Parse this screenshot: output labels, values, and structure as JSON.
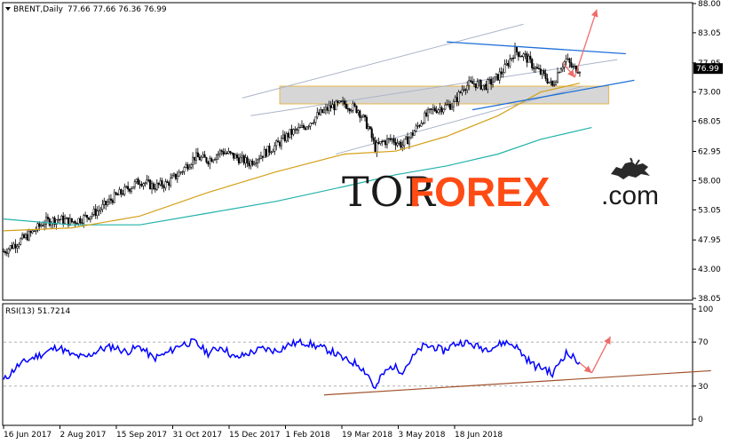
{
  "chart_data": [
    {
      "type": "candlestick",
      "instrument_label": "BRENT,Daily",
      "ohlc_label": "77.66 77.66 76.36 76.99",
      "last_price": "76.99",
      "ylim": [
        38.05,
        88.0
      ],
      "y_ticks": [
        "88.00",
        "83.05",
        "77.95",
        "73.00",
        "68.05",
        "62.95",
        "58.00",
        "53.05",
        "47.95",
        "43.00",
        "38.05"
      ],
      "x_ticks": [
        "16 Jun 2017",
        "2 Aug 2017",
        "15 Sep 2017",
        "31 Oct 2017",
        "15 Dec 2017",
        "1 Feb 2018",
        "19 Mar 2018",
        "3 May 2018",
        "18 Jun 2018"
      ],
      "close_path": [
        [
          0,
          46.0
        ],
        [
          8,
          47.5
        ],
        [
          16,
          49.0
        ],
        [
          24,
          51.0
        ],
        [
          32,
          51.5
        ],
        [
          40,
          51.0
        ],
        [
          48,
          51.8
        ],
        [
          56,
          53.0
        ],
        [
          64,
          55.0
        ],
        [
          72,
          56.5
        ],
        [
          80,
          58.0
        ],
        [
          88,
          57.0
        ],
        [
          96,
          57.5
        ],
        [
          104,
          59.5
        ],
        [
          112,
          62.0
        ],
        [
          120,
          61.5
        ],
        [
          128,
          63.0
        ],
        [
          136,
          62.0
        ],
        [
          144,
          61.0
        ],
        [
          152,
          62.5
        ],
        [
          160,
          64.0
        ],
        [
          168,
          66.0
        ],
        [
          176,
          67.0
        ],
        [
          184,
          69.0
        ],
        [
          192,
          70.5
        ],
        [
          200,
          71.0
        ],
        [
          208,
          70.0
        ],
        [
          214,
          67.0
        ],
        [
          218,
          63.5
        ],
        [
          222,
          64.5
        ],
        [
          228,
          65.0
        ],
        [
          234,
          64.0
        ],
        [
          240,
          66.0
        ],
        [
          246,
          68.5
        ],
        [
          252,
          70.0
        ],
        [
          258,
          70.5
        ],
        [
          264,
          71.0
        ],
        [
          270,
          74.0
        ],
        [
          276,
          74.5
        ],
        [
          282,
          74.0
        ],
        [
          288,
          75.0
        ],
        [
          294,
          77.0
        ],
        [
          300,
          80.0
        ],
        [
          306,
          79.0
        ],
        [
          312,
          77.0
        ],
        [
          318,
          75.5
        ],
        [
          322,
          74.0
        ],
        [
          326,
          77.0
        ],
        [
          330,
          78.5
        ],
        [
          334,
          77.0
        ],
        [
          338,
          76.99
        ]
      ],
      "sma_fast": [
        [
          0,
          49.5
        ],
        [
          40,
          50.0
        ],
        [
          80,
          52.0
        ],
        [
          120,
          56.0
        ],
        [
          160,
          59.5
        ],
        [
          200,
          62.5
        ],
        [
          230,
          63.0
        ],
        [
          260,
          65.5
        ],
        [
          290,
          69.0
        ],
        [
          315,
          73.0
        ],
        [
          338,
          74.5
        ]
      ],
      "sma_slow": [
        [
          0,
          51.5
        ],
        [
          40,
          50.5
        ],
        [
          80,
          50.5
        ],
        [
          120,
          52.5
        ],
        [
          160,
          54.5
        ],
        [
          200,
          57.0
        ],
        [
          230,
          59.0
        ],
        [
          260,
          60.5
        ],
        [
          290,
          62.5
        ],
        [
          315,
          65.0
        ],
        [
          345,
          67.0
        ]
      ],
      "resistance_zone": {
        "x": [
          162,
          355
        ],
        "y": [
          71.0,
          74.0
        ]
      },
      "channel_upper": [
        [
          140,
          72.0
        ],
        [
          305,
          84.5
        ]
      ],
      "channel_mid": [
        [
          145,
          69.0
        ],
        [
          360,
          78.5
        ]
      ],
      "channel_lower": [
        [
          195,
          62.5
        ],
        [
          340,
          74.0
        ]
      ],
      "descending_line": [
        [
          260,
          81.5
        ],
        [
          365,
          79.5
        ]
      ],
      "support_line": [
        [
          275,
          70.0
        ],
        [
          370,
          75.0
        ]
      ],
      "forecast_arrows": [
        {
          "from": [
            328,
            78.0
          ],
          "to": [
            335,
            75.5
          ]
        },
        {
          "from": [
            335,
            75.5
          ],
          "to": [
            348,
            87.0
          ]
        }
      ],
      "colors": {
        "bull": "#ffffff",
        "bear": "#000000",
        "sma_fast": "#d4a017",
        "sma_slow": "#20b2aa",
        "trend": "#1e6fd9",
        "arrow": "#ef6a6a",
        "channel": "#aab4c8",
        "zone_fill": "#d6d6d6",
        "zone_border": "#e8b84a"
      }
    },
    {
      "type": "line",
      "indicator_label": "RSI(13) 51.7214",
      "ylim": [
        0,
        100
      ],
      "y_ticks": [
        "100",
        "70",
        "30",
        "0"
      ],
      "levels": [
        70,
        30
      ],
      "values_path": [
        [
          0,
          35
        ],
        [
          8,
          48
        ],
        [
          16,
          55
        ],
        [
          24,
          60
        ],
        [
          32,
          66
        ],
        [
          40,
          58
        ],
        [
          48,
          56
        ],
        [
          56,
          63
        ],
        [
          64,
          66
        ],
        [
          72,
          61
        ],
        [
          80,
          66
        ],
        [
          88,
          55
        ],
        [
          96,
          60
        ],
        [
          104,
          68
        ],
        [
          112,
          70
        ],
        [
          120,
          60
        ],
        [
          128,
          66
        ],
        [
          136,
          55
        ],
        [
          144,
          60
        ],
        [
          152,
          64
        ],
        [
          160,
          62
        ],
        [
          168,
          68
        ],
        [
          176,
          70
        ],
        [
          184,
          66
        ],
        [
          192,
          62
        ],
        [
          200,
          54
        ],
        [
          208,
          50
        ],
        [
          214,
          40
        ],
        [
          218,
          27
        ],
        [
          222,
          40
        ],
        [
          228,
          48
        ],
        [
          234,
          44
        ],
        [
          240,
          56
        ],
        [
          246,
          66
        ],
        [
          252,
          66
        ],
        [
          258,
          62
        ],
        [
          264,
          68
        ],
        [
          270,
          70
        ],
        [
          276,
          67
        ],
        [
          282,
          64
        ],
        [
          288,
          66
        ],
        [
          294,
          70
        ],
        [
          300,
          67
        ],
        [
          306,
          56
        ],
        [
          312,
          48
        ],
        [
          318,
          46
        ],
        [
          322,
          40
        ],
        [
          326,
          52
        ],
        [
          330,
          60
        ],
        [
          334,
          56
        ],
        [
          338,
          51.7
        ]
      ],
      "support_line": [
        [
          188,
          22
        ],
        [
          415,
          44
        ]
      ],
      "forecast_arrows": [
        {
          "from": [
            338,
            51
          ],
          "to": [
            345,
            42
          ]
        },
        {
          "from": [
            345,
            42
          ],
          "to": [
            356,
            75
          ]
        }
      ],
      "colors": {
        "line": "#0000ff",
        "support": "#a0522d",
        "arrow": "#ef6a6a"
      }
    }
  ],
  "watermark": {
    "part1": "TOR",
    "part2": "FOREX",
    "part3": ".com",
    "logo": "bull-bear-icon"
  }
}
